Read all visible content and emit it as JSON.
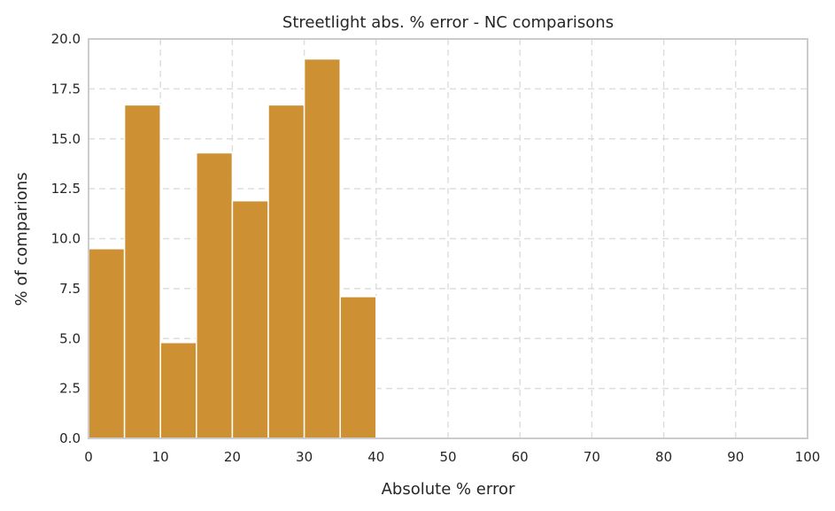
{
  "chart_data": {
    "type": "bar",
    "title": "Streetlight abs. % error - NC comparisons",
    "xlabel": "Absolute % error",
    "ylabel": "% of comparions",
    "xlim": [
      0,
      100
    ],
    "ylim": [
      0,
      20
    ],
    "xticks": [
      "0",
      "10",
      "20",
      "30",
      "40",
      "50",
      "60",
      "70",
      "80",
      "90",
      "100"
    ],
    "yticks": [
      "0.0",
      "2.5",
      "5.0",
      "7.5",
      "10.0",
      "12.5",
      "15.0",
      "17.5",
      "20.0"
    ],
    "bin_width": 5,
    "bins": [
      {
        "x0": 0,
        "x1": 5,
        "value": 9.5
      },
      {
        "x0": 5,
        "x1": 10,
        "value": 16.7
      },
      {
        "x0": 10,
        "x1": 15,
        "value": 4.8
      },
      {
        "x0": 15,
        "x1": 20,
        "value": 14.3
      },
      {
        "x0": 20,
        "x1": 25,
        "value": 11.9
      },
      {
        "x0": 25,
        "x1": 30,
        "value": 16.7
      },
      {
        "x0": 30,
        "x1": 35,
        "value": 19.0
      },
      {
        "x0": 35,
        "x1": 40,
        "value": 7.1
      }
    ],
    "bar_color": "#cd9133",
    "grid": true
  }
}
